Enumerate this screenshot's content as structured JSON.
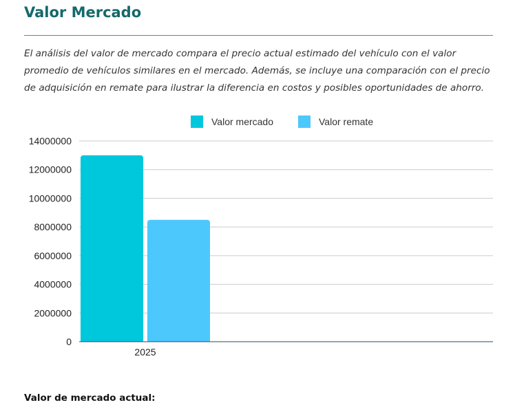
{
  "header": {
    "title": "Valor Mercado",
    "description": "El análisis del valor de mercado compara el precio actual estimado del vehículo con el valor promedio de vehículos similares en el mercado. Además, se incluye una comparación con el precio de adquisición en remate para ilustrar la diferencia en costos y posibles oportunidades de ahorro."
  },
  "chart_data": {
    "type": "bar",
    "categories": [
      "2025"
    ],
    "series": [
      {
        "name": "Valor mercado",
        "values": [
          13000000
        ],
        "color": "#00c8dc"
      },
      {
        "name": "Valor remate",
        "values": [
          8500000
        ],
        "color": "#4dc8fc"
      }
    ],
    "ylim": [
      0,
      14000000
    ],
    "yticks": [
      "0",
      "2000000",
      "4000000",
      "6000000",
      "8000000",
      "10000000",
      "12000000",
      "14000000"
    ],
    "grid": true,
    "legend": "top-center",
    "grid_color": "#cccccc",
    "axis_color": "#1f4e5f"
  },
  "footer": {
    "label": "Valor de mercado actual:"
  }
}
